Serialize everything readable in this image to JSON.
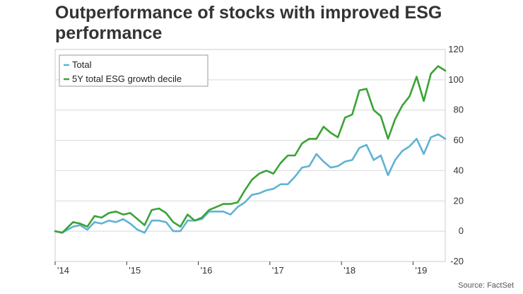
{
  "chart_data": {
    "type": "line",
    "title": "Outperformance of stocks with improved ESG performance",
    "source": "Source: FactSet",
    "ylim": [
      -20,
      120
    ],
    "yticks": [
      -20,
      0,
      20,
      40,
      60,
      80,
      100,
      120
    ],
    "x_tick_labels": [
      {
        "label": "'14",
        "t": 2014.0
      },
      {
        "label": "'15",
        "t": 2015.0
      },
      {
        "label": "'16",
        "t": 2016.0
      },
      {
        "label": "'17",
        "t": 2017.0
      },
      {
        "label": "'18",
        "t": 2018.0
      },
      {
        "label": "'19",
        "t": 2019.0
      }
    ],
    "xlim": [
      2014.0,
      2019.45
    ],
    "legend_position": "top-left",
    "series": [
      {
        "name": "Total",
        "color": "#5fb3d3",
        "t": [
          2014.0,
          2014.1,
          2014.25,
          2014.35,
          2014.45,
          2014.55,
          2014.65,
          2014.75,
          2014.85,
          2014.95,
          2015.05,
          2015.15,
          2015.25,
          2015.35,
          2015.45,
          2015.55,
          2015.65,
          2015.75,
          2015.85,
          2015.95,
          2016.05,
          2016.15,
          2016.25,
          2016.35,
          2016.45,
          2016.55,
          2016.65,
          2016.75,
          2016.85,
          2016.95,
          2017.05,
          2017.15,
          2017.25,
          2017.35,
          2017.45,
          2017.55,
          2017.65,
          2017.75,
          2017.85,
          2017.95,
          2018.05,
          2018.15,
          2018.25,
          2018.35,
          2018.45,
          2018.55,
          2018.65,
          2018.75,
          2018.85,
          2018.95,
          2019.05,
          2019.15,
          2019.25,
          2019.35,
          2019.45
        ],
        "values": [
          0,
          -1,
          3,
          4,
          1,
          6,
          5,
          7,
          6,
          8,
          5,
          1,
          -1,
          7,
          7,
          6,
          0,
          0,
          7,
          7,
          8,
          13,
          13,
          13,
          11,
          16,
          19,
          24,
          25,
          27,
          28,
          31,
          31,
          36,
          42,
          43,
          51,
          46,
          42,
          43,
          46,
          47,
          55,
          57,
          47,
          50,
          37,
          47,
          53,
          56,
          61,
          51,
          62,
          64,
          61
        ]
      },
      {
        "name": "5Y total ESG growth decile",
        "color": "#3aa335",
        "t": [
          2014.0,
          2014.1,
          2014.25,
          2014.35,
          2014.45,
          2014.55,
          2014.65,
          2014.75,
          2014.85,
          2014.95,
          2015.05,
          2015.15,
          2015.25,
          2015.35,
          2015.45,
          2015.55,
          2015.65,
          2015.75,
          2015.85,
          2015.95,
          2016.05,
          2016.15,
          2016.25,
          2016.35,
          2016.45,
          2016.55,
          2016.65,
          2016.75,
          2016.85,
          2016.95,
          2017.05,
          2017.15,
          2017.25,
          2017.35,
          2017.45,
          2017.55,
          2017.65,
          2017.75,
          2017.85,
          2017.95,
          2018.05,
          2018.15,
          2018.25,
          2018.35,
          2018.45,
          2018.55,
          2018.65,
          2018.75,
          2018.85,
          2018.95,
          2019.05,
          2019.15,
          2019.25,
          2019.35,
          2019.45
        ],
        "values": [
          0,
          -1,
          6,
          5,
          3,
          10,
          9,
          12,
          13,
          11,
          12,
          8,
          4,
          14,
          15,
          12,
          6,
          3,
          11,
          7,
          9,
          14,
          16,
          18,
          18,
          19,
          27,
          34,
          38,
          40,
          38,
          45,
          50,
          50,
          58,
          61,
          61,
          69,
          65,
          62,
          75,
          77,
          93,
          94,
          80,
          76,
          61,
          74,
          83,
          89,
          102,
          86,
          104,
          109,
          106
        ]
      }
    ]
  }
}
